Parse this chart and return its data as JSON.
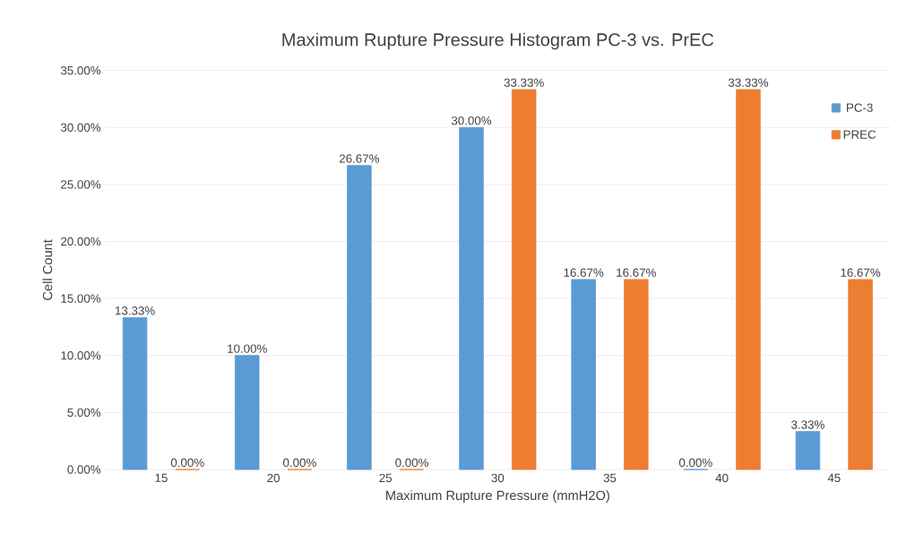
{
  "chart_data": {
    "type": "bar",
    "title": "Maximum Rupture Pressure Histogram PC-3 vs. PrEC",
    "xlabel": "Maximum Rupture Pressure (mmH2O)",
    "ylabel": "Cell Count",
    "categories": [
      "15",
      "20",
      "25",
      "30",
      "35",
      "40",
      "45"
    ],
    "series": [
      {
        "name": "PC-3",
        "color": "#5b9bd5",
        "values": [
          13.33,
          10.0,
          26.67,
          30.0,
          16.67,
          0.0,
          3.33
        ],
        "value_labels": [
          "13.33%",
          "10.00%",
          "26.67%",
          "30.00%",
          "16.67%",
          "0.00%",
          "3.33%"
        ]
      },
      {
        "name": "PREC",
        "color": "#ed7d31",
        "values": [
          0.0,
          0.0,
          0.0,
          33.33,
          16.67,
          33.33,
          16.67
        ],
        "value_labels": [
          "0.00%",
          "0.00%",
          "0.00%",
          "33.33%",
          "16.67%",
          "33.33%",
          "16.67%"
        ]
      }
    ],
    "ylim": [
      0,
      35
    ],
    "yticks": [
      {
        "value": 0,
        "label": "0.00%"
      },
      {
        "value": 5,
        "label": "5.00%"
      },
      {
        "value": 10,
        "label": "10.00%"
      },
      {
        "value": 15,
        "label": "15.00%"
      },
      {
        "value": 20,
        "label": "20.00%"
      },
      {
        "value": 25,
        "label": "25.00%"
      },
      {
        "value": 30,
        "label": "30.00%"
      },
      {
        "value": 35,
        "label": "35.00%"
      }
    ],
    "grid": "y",
    "legend": "top right"
  }
}
